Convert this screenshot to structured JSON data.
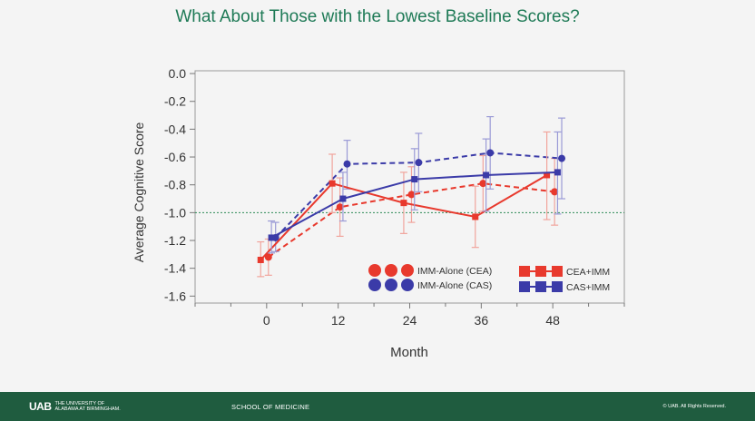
{
  "slide": {
    "title": "What About Those with the Lowest Baseline Scores?"
  },
  "footer": {
    "logo_mark": "UAB",
    "logo_text_line1": "THE UNIVERSITY OF",
    "logo_text_line2": "ALABAMA AT BIRMINGHAM.",
    "school": "SCHOOL OF MEDICINE",
    "rights": "© UAB. All Rights Reserved."
  },
  "colors": {
    "red": "#e8392d",
    "blue": "#3b3ba8",
    "reference_line": "#2e8b57",
    "title": "#1e7a56",
    "footer_bg": "#1f5c3f"
  },
  "chart_data": {
    "type": "line",
    "title": "",
    "xlabel": "Month",
    "ylabel": "Average Cognitive Score",
    "x_ticks": [
      0,
      12,
      24,
      36,
      48
    ],
    "y_ticks": [
      0.0,
      -0.2,
      -0.4,
      -0.6,
      -0.8,
      -1.0,
      -1.2,
      -1.4,
      -1.6
    ],
    "y_tick_labels": [
      "0.0",
      "-0.2",
      "-0.4",
      "-0.6",
      "-0.8",
      "-1.0",
      "-1.2",
      "-1.4",
      "-1.6"
    ],
    "xlim": [
      -12,
      60
    ],
    "ylim": [
      -1.65,
      0.02
    ],
    "reference_line": -1.0,
    "series": [
      {
        "name": "IMM-Alone (CEA)",
        "color": "#e8392d",
        "line": "dashed",
        "marker": "circle",
        "x": [
          0.3,
          12.3,
          24.3,
          36.3,
          48.3
        ],
        "y": [
          -1.32,
          -0.96,
          -0.87,
          -0.79,
          -0.85
        ],
        "err_low": [
          -1.45,
          -1.17,
          -1.07,
          -0.99,
          -1.09
        ],
        "err_high": [
          -1.19,
          -0.75,
          -0.67,
          -0.59,
          -0.61
        ]
      },
      {
        "name": "IMM-Alone (CAS)",
        "color": "#3b3ba8",
        "line": "dashed",
        "marker": "circle",
        "x": [
          1.5,
          13.5,
          25.5,
          37.5,
          49.5
        ],
        "y": [
          -1.18,
          -0.65,
          -0.64,
          -0.57,
          -0.61
        ],
        "err_low": [
          -1.28,
          -0.83,
          -0.85,
          -0.83,
          -0.9
        ],
        "err_high": [
          -1.07,
          -0.48,
          -0.43,
          -0.31,
          -0.32
        ]
      },
      {
        "name": "CEA+IMM",
        "color": "#e8392d",
        "line": "solid",
        "marker": "square",
        "x": [
          -1.0,
          11.0,
          23.0,
          35.0,
          47.0
        ],
        "y": [
          -1.34,
          -0.79,
          -0.93,
          -1.03,
          -0.73
        ],
        "err_low": [
          -1.46,
          -1.0,
          -1.15,
          -1.25,
          -1.05
        ],
        "err_high": [
          -1.21,
          -0.58,
          -0.71,
          -0.81,
          -0.42
        ]
      },
      {
        "name": "CAS+IMM",
        "color": "#3b3ba8",
        "line": "solid",
        "marker": "square",
        "x": [
          0.8,
          12.8,
          24.8,
          36.8,
          48.8
        ],
        "y": [
          -1.18,
          -0.9,
          -0.76,
          -0.73,
          -0.71
        ],
        "err_low": [
          -1.29,
          -1.06,
          -0.98,
          -0.99,
          -1.01
        ],
        "err_high": [
          -1.06,
          -0.71,
          -0.54,
          -0.47,
          -0.42
        ]
      }
    ],
    "legend": {
      "placement": "bottom-right",
      "entries": [
        {
          "label": "IMM-Alone (CEA)",
          "marker": "circle",
          "color": "#e8392d"
        },
        {
          "label": "IMM-Alone (CAS)",
          "marker": "circle",
          "color": "#3b3ba8"
        },
        {
          "label": "CEA+IMM",
          "marker": "square",
          "color": "#e8392d"
        },
        {
          "label": "CAS+IMM",
          "marker": "square",
          "color": "#3b3ba8"
        }
      ]
    }
  }
}
